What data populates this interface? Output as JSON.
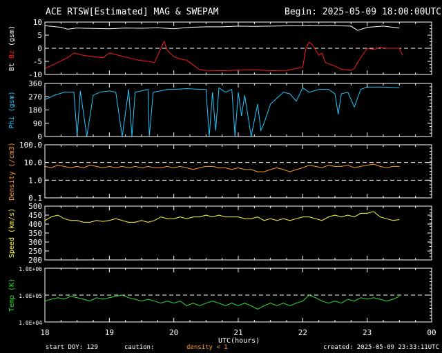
{
  "header": {
    "title": "ACE RTSW[Estimated] MAG & SWEPAM",
    "begin": "Begin: 2025-05-09 18:00:00UTC"
  },
  "footer": {
    "start_doy": "start DOY: 129",
    "caution_label": "caution:",
    "caution_text": "density < 1",
    "created": "created: 2025-05-09 23:33:11UTC",
    "xlabel": "UTC(hours)"
  },
  "colors": {
    "background": "#000000",
    "axis": "#ffffff",
    "bt": "#ffffff",
    "bz": "#ff1a1a",
    "phi": "#22c8ff",
    "density": "#ff9a28",
    "speed": "#ffff40",
    "temp": "#30e030"
  },
  "chart_data": [
    {
      "type": "line",
      "panel": "magnetic field",
      "xlabel": "UTC(hours)",
      "x_ticks": [
        "18",
        "19",
        "20",
        "21",
        "22",
        "23",
        "00"
      ],
      "xlim": [
        18,
        24
      ],
      "ylabel_parts": [
        "Bt",
        "Bz",
        "(gsm)"
      ],
      "y_ticks": [
        "10",
        "5",
        "0",
        "-5",
        "-10"
      ],
      "ylim": [
        -11,
        11
      ],
      "reference_lines": [
        0
      ],
      "series": [
        {
          "name": "Bt",
          "color": "#ffffff",
          "x": [
            18.0,
            18.25,
            18.35,
            18.5,
            18.75,
            19.0,
            19.25,
            19.5,
            19.75,
            20.0,
            20.25,
            20.5,
            20.75,
            21.0,
            21.25,
            21.5,
            21.75,
            22.0,
            22.1,
            22.25,
            22.5,
            22.6,
            22.75,
            22.85,
            23.0,
            23.25,
            23.5
          ],
          "y": [
            9.5,
            8.8,
            8,
            8.5,
            8.3,
            8.2,
            8.5,
            8.4,
            8.6,
            8.2,
            8.8,
            9,
            9,
            9.3,
            9.2,
            9.3,
            9.4,
            9.5,
            9.6,
            9.5,
            9.6,
            9.4,
            9.3,
            7.5,
            8.8,
            9.3,
            8.5
          ]
        },
        {
          "name": "Bz",
          "color": "#ff1a1a",
          "x": [
            18.0,
            18.2,
            18.35,
            18.45,
            18.6,
            18.75,
            18.9,
            19.0,
            19.15,
            19.3,
            19.45,
            19.6,
            19.7,
            19.8,
            19.85,
            19.9,
            20.0,
            20.1,
            20.2,
            20.3,
            20.4,
            20.5,
            20.75,
            21.0,
            21.25,
            21.5,
            21.75,
            21.9,
            22.0,
            22.05,
            22.1,
            22.15,
            22.25,
            22.3,
            22.35,
            22.5,
            22.6,
            22.75,
            22.8,
            22.85,
            23.0,
            23.1,
            23.2,
            23.3,
            23.5,
            23.55
          ],
          "y": [
            -8.5,
            -6,
            -4,
            -2,
            -3,
            -3.5,
            -4,
            -2,
            -3,
            -4,
            -5,
            -5.5,
            -6,
            0,
            2.8,
            -1,
            -3.5,
            -4.5,
            -5,
            -7,
            -9,
            -9.3,
            -9.4,
            -9.2,
            -9.1,
            -9.4,
            -9.3,
            -8.5,
            -8,
            0,
            2.5,
            1.5,
            -3,
            -2,
            -6,
            -7.5,
            -8.8,
            -9.3,
            -8.5,
            -6,
            0,
            -0.5,
            0.3,
            0,
            0,
            -3
          ]
        }
      ]
    },
    {
      "type": "line",
      "panel": "phi",
      "ylabel": "Phi (gsm)",
      "y_ticks": [
        "360",
        "270",
        "180",
        "90",
        "0"
      ],
      "ylim": [
        0,
        360
      ],
      "series": [
        {
          "name": "Phi",
          "color": "#22c8ff",
          "x": [
            18.0,
            18.15,
            18.3,
            18.45,
            18.5,
            18.55,
            18.65,
            18.75,
            18.85,
            19.0,
            19.1,
            19.2,
            19.3,
            19.35,
            19.4,
            19.5,
            19.6,
            19.62,
            19.68,
            19.8,
            19.9,
            20.0,
            20.2,
            20.4,
            20.5,
            20.55,
            20.6,
            20.65,
            20.7,
            20.8,
            20.9,
            20.95,
            21.0,
            21.05,
            21.1,
            21.2,
            21.3,
            21.35,
            21.4,
            21.5,
            21.6,
            21.7,
            21.8,
            21.9,
            22.0,
            22.1,
            22.25,
            22.4,
            22.5,
            22.55,
            22.6,
            22.7,
            22.8,
            22.9,
            23.0,
            23.25,
            23.5
          ],
          "y": [
            250,
            280,
            300,
            300,
            0,
            310,
            0,
            280,
            300,
            310,
            300,
            0,
            320,
            0,
            300,
            310,
            320,
            0,
            300,
            310,
            320,
            320,
            325,
            320,
            320,
            0,
            300,
            40,
            330,
            300,
            320,
            0,
            300,
            140,
            280,
            0,
            220,
            40,
            90,
            220,
            260,
            300,
            290,
            240,
            330,
            300,
            320,
            320,
            290,
            150,
            290,
            300,
            200,
            320,
            335,
            335,
            330
          ]
        }
      ]
    },
    {
      "type": "line",
      "panel": "density",
      "ylabel": "Density (/cm3)",
      "y_ticks": [
        "100.0",
        "10.0",
        "1.0",
        "0.1"
      ],
      "ylim": [
        0.1,
        100
      ],
      "y_scale": "log",
      "reference_lines": [
        10,
        1
      ],
      "series": [
        {
          "name": "Density",
          "color": "#ff9a28",
          "x": [
            18.0,
            18.1,
            18.2,
            18.3,
            18.4,
            18.5,
            18.6,
            18.7,
            18.8,
            18.9,
            19.0,
            19.1,
            19.2,
            19.3,
            19.4,
            19.5,
            19.6,
            19.7,
            19.8,
            19.9,
            20.0,
            20.1,
            20.2,
            20.3,
            20.4,
            20.5,
            20.6,
            20.7,
            20.8,
            20.9,
            21.0,
            21.1,
            21.2,
            21.3,
            21.4,
            21.5,
            21.6,
            21.7,
            21.8,
            21.9,
            22.0,
            22.1,
            22.2,
            22.3,
            22.4,
            22.5,
            22.6,
            22.7,
            22.8,
            22.9,
            23.0,
            23.1,
            23.2,
            23.3,
            23.4,
            23.5
          ],
          "y": [
            6,
            5,
            7,
            6,
            5,
            6,
            5,
            7,
            6,
            5,
            6,
            5,
            6,
            5,
            6,
            5,
            6,
            5,
            5,
            6,
            5,
            6,
            5,
            4,
            5,
            6,
            6,
            5,
            5,
            4,
            5,
            4,
            4,
            3,
            3,
            4,
            5,
            4,
            3,
            4,
            5,
            7,
            6,
            5,
            7,
            6,
            6,
            7,
            5,
            6,
            7,
            8,
            6,
            5,
            6,
            6
          ]
        }
      ]
    },
    {
      "type": "line",
      "panel": "speed",
      "ylabel": "Speed (km/s)",
      "y_ticks": [
        "500",
        "450",
        "400",
        "350",
        "300",
        "250",
        "200"
      ],
      "ylim": [
        200,
        500
      ],
      "series": [
        {
          "name": "Speed",
          "color": "#ffff40",
          "x": [
            18.0,
            18.1,
            18.2,
            18.3,
            18.4,
            18.5,
            18.6,
            18.7,
            18.8,
            18.9,
            19.0,
            19.1,
            19.2,
            19.3,
            19.4,
            19.5,
            19.6,
            19.7,
            19.8,
            19.9,
            20.0,
            20.1,
            20.2,
            20.3,
            20.4,
            20.5,
            20.6,
            20.7,
            20.8,
            20.9,
            21.0,
            21.1,
            21.2,
            21.3,
            21.4,
            21.5,
            21.6,
            21.7,
            21.8,
            21.9,
            22.0,
            22.1,
            22.2,
            22.3,
            22.4,
            22.5,
            22.6,
            22.7,
            22.8,
            22.9,
            23.0,
            23.1,
            23.2,
            23.3,
            23.4,
            23.5
          ],
          "y": [
            420,
            440,
            450,
            430,
            420,
            420,
            410,
            410,
            420,
            415,
            420,
            430,
            420,
            410,
            410,
            420,
            410,
            420,
            440,
            430,
            430,
            440,
            430,
            440,
            440,
            450,
            440,
            450,
            440,
            440,
            440,
            430,
            430,
            440,
            420,
            430,
            420,
            430,
            420,
            430,
            440,
            440,
            430,
            420,
            440,
            450,
            440,
            450,
            440,
            460,
            460,
            470,
            440,
            430,
            420,
            425
          ]
        }
      ]
    },
    {
      "type": "line",
      "panel": "temperature",
      "ylabel": "Temp (K)",
      "y_ticks": [
        "1.0E+06",
        "1.0E+05",
        "1.0E+04"
      ],
      "ylim": [
        10000,
        1000000
      ],
      "y_scale": "log",
      "reference_lines": [
        100000
      ],
      "series": [
        {
          "name": "Temp",
          "color": "#30e030",
          "x": [
            18.0,
            18.1,
            18.2,
            18.3,
            18.4,
            18.5,
            18.6,
            18.7,
            18.8,
            18.9,
            19.0,
            19.1,
            19.2,
            19.3,
            19.4,
            19.5,
            19.6,
            19.7,
            19.8,
            19.9,
            20.0,
            20.1,
            20.2,
            20.3,
            20.4,
            20.5,
            20.6,
            20.7,
            20.8,
            20.9,
            21.0,
            21.1,
            21.2,
            21.3,
            21.4,
            21.5,
            21.6,
            21.7,
            21.8,
            21.9,
            22.0,
            22.1,
            22.2,
            22.3,
            22.4,
            22.5,
            22.6,
            22.7,
            22.8,
            22.9,
            23.0,
            23.1,
            23.2,
            23.3,
            23.4,
            23.5
          ],
          "y": [
            60000,
            70000,
            80000,
            70000,
            90000,
            80000,
            70000,
            60000,
            80000,
            70000,
            80000,
            90000,
            100000,
            80000,
            70000,
            60000,
            70000,
            60000,
            50000,
            60000,
            50000,
            60000,
            40000,
            50000,
            40000,
            50000,
            60000,
            50000,
            40000,
            50000,
            40000,
            50000,
            40000,
            30000,
            40000,
            50000,
            40000,
            50000,
            40000,
            50000,
            60000,
            100000,
            80000,
            60000,
            50000,
            60000,
            50000,
            70000,
            60000,
            80000,
            70000,
            80000,
            70000,
            60000,
            70000,
            90000
          ]
        }
      ]
    }
  ]
}
